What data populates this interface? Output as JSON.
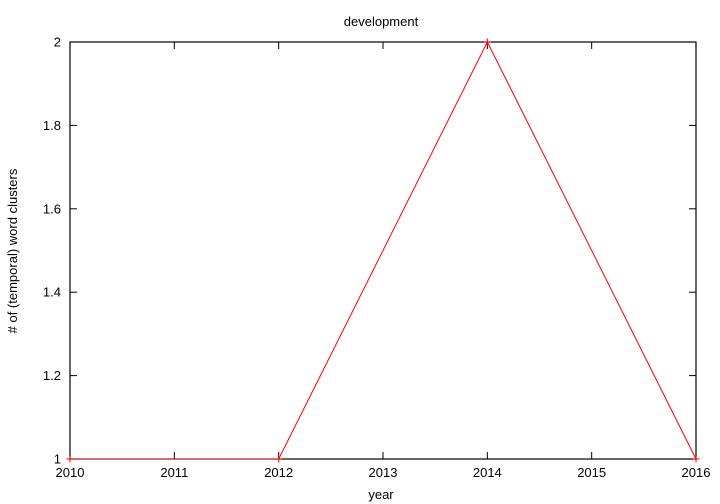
{
  "chart_data": {
    "type": "line",
    "title": "development",
    "xlabel": "year",
    "ylabel": "# of (temporal) word clusters",
    "x": [
      2010,
      2012,
      2014,
      2016
    ],
    "series": [
      {
        "values": [
          1,
          1,
          2,
          1
        ],
        "color": "#ff0000"
      }
    ],
    "xlim": [
      2010,
      2016
    ],
    "ylim": [
      1,
      2
    ],
    "xticks": [
      "2010",
      "2011",
      "2012",
      "2013",
      "2014",
      "2015",
      "2016"
    ],
    "yticks": [
      "1",
      "1.2",
      "1.4",
      "1.6",
      "1.8",
      "2"
    ],
    "grid": false,
    "legend": "none"
  }
}
